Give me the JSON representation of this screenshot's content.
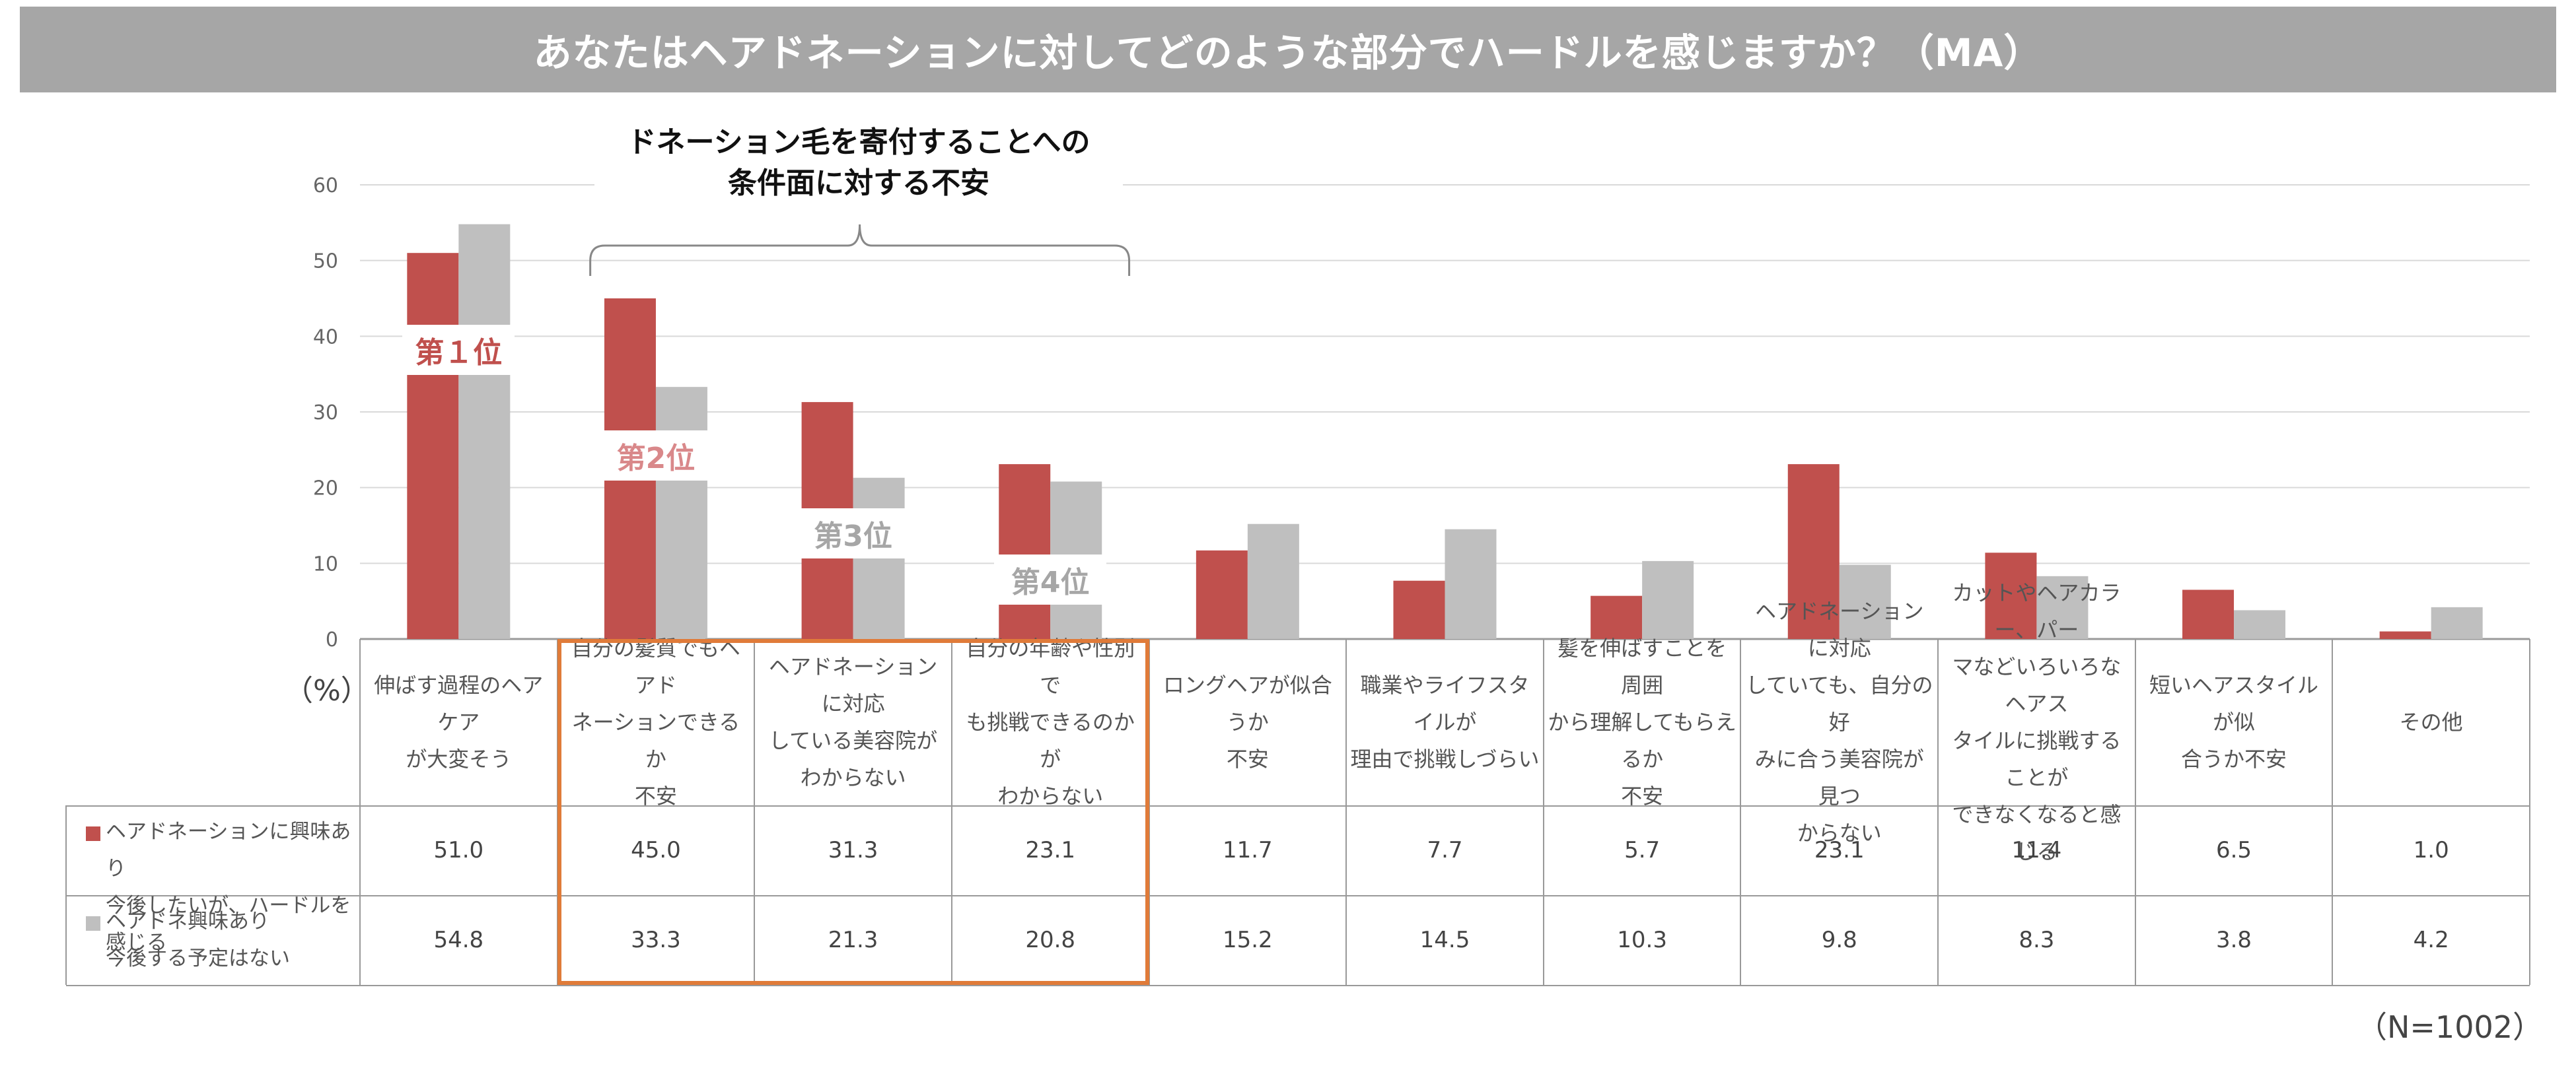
{
  "title": "あなたはヘアドネーションに対してどのような部分でハードルを感じますか？（MA）",
  "callout": "ドネーション毛を寄付することへの\n条件面に対する不安",
  "ranks": [
    "第１位",
    "第2位",
    "第3位",
    "第4位"
  ],
  "unit_label": "（%）",
  "n_label": "（N=1002）",
  "colors": {
    "series1": "#c0504d",
    "series2": "#bfbfbf",
    "highlight": "#e07b39",
    "rank1": "#c0504d",
    "rank2": "#d9888a",
    "rank3": "#a6a6a6"
  },
  "chart_data": {
    "type": "bar",
    "ylim": [
      0,
      60
    ],
    "yticks": [
      0,
      10,
      20,
      30,
      40,
      50,
      60
    ],
    "categories": [
      "伸ばす過程のヘアケア\nが大変そう",
      "自分の髪質でもヘアド\nネーションできるか\n不安",
      "ヘアドネーションに対応\nしている美容院が\nわからない",
      "自分の年齢や性別で\nも挑戦できるのかが\nわからない",
      "ロングヘアが似合うか\n不安",
      "職業やライフスタイルが\n理由で挑戦しづらい",
      "髪を伸ばすことを周囲\nから理解してもらえるか\n不安",
      "ヘアドネーションに対応\nしていても、自分の好\nみに合う美容院が見つ\nからない",
      "カットやヘアカラー、パー\nマなどいろいろなヘアス\nタイルに挑戦することが\nできなくなると感じる",
      "短いヘアスタイルが似\n合うか不安",
      "その他"
    ],
    "series": [
      {
        "name": "ヘアドネーションに興味あり\n今後したいが、ハードルを感じる",
        "values": [
          51.0,
          45.0,
          31.3,
          23.1,
          11.7,
          7.7,
          5.7,
          23.1,
          11.4,
          6.5,
          1.0
        ]
      },
      {
        "name": "ヘアドネ興味あり\n今後する予定はない",
        "values": [
          54.8,
          33.3,
          21.3,
          20.8,
          15.2,
          14.5,
          10.3,
          9.8,
          8.3,
          3.8,
          4.2
        ]
      }
    ]
  }
}
